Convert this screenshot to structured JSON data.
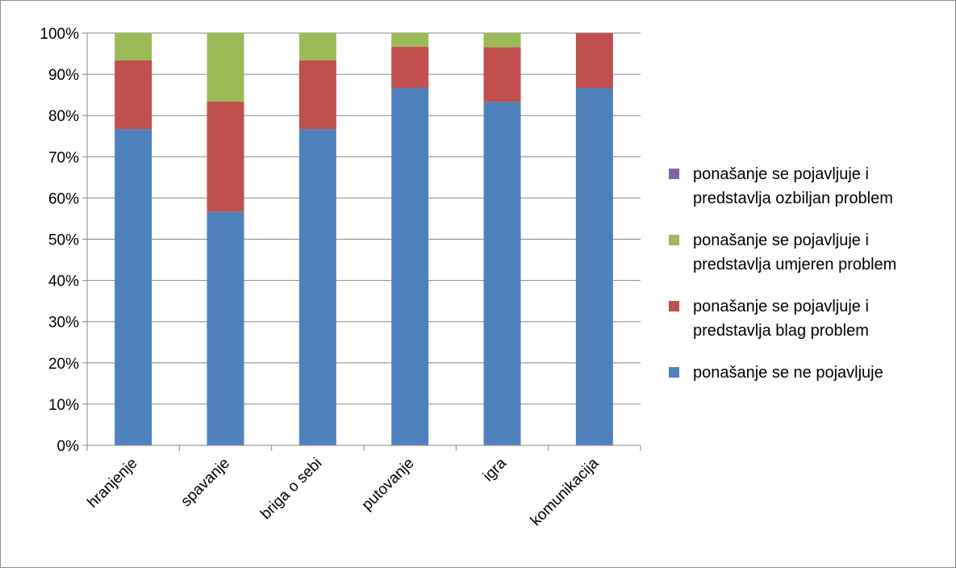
{
  "chart_data": {
    "type": "bar",
    "stacked": "percent",
    "categories": [
      "hranjenje",
      "spavanje",
      "briga o sebi",
      "putovanje",
      "igra",
      "komunikacija"
    ],
    "series": [
      {
        "name": "ponašanje se ne pojavljuje",
        "color": "#4F81BD",
        "values": [
          76.7,
          56.7,
          76.7,
          86.7,
          83.3,
          86.7
        ]
      },
      {
        "name": "ponašanje se pojavljuje i predstavlja blag problem",
        "color": "#C0504D",
        "values": [
          16.7,
          26.7,
          16.7,
          10.0,
          13.3,
          13.3
        ]
      },
      {
        "name": "ponašanje se pojavljuje i predstavlja umjeren problem",
        "color": "#9BBB59",
        "values": [
          6.6,
          16.6,
          6.6,
          3.3,
          3.4,
          0.0
        ]
      },
      {
        "name": "ponašanje se pojavljuje i predstavlja ozbiljan problem",
        "color": "#8064A2",
        "values": [
          0,
          0,
          0,
          0,
          0,
          0
        ]
      }
    ],
    "y_ticks": [
      "0%",
      "10%",
      "20%",
      "30%",
      "40%",
      "50%",
      "60%",
      "70%",
      "80%",
      "90%",
      "100%"
    ],
    "ylim": [
      0,
      100
    ],
    "grid": true,
    "legend_position": "right",
    "legend": [
      {
        "lines": [
          "ponašanje se pojavljuje i",
          "predstavlja ozbiljan problem"
        ],
        "color": "#8064A2"
      },
      {
        "lines": [
          "ponašanje se pojavljuje i",
          "predstavlja umjeren problem"
        ],
        "color": "#9BBB59"
      },
      {
        "lines": [
          "ponašanje se pojavljuje i",
          "predstavlja blag problem"
        ],
        "color": "#C0504D"
      },
      {
        "lines": [
          "ponašanje se ne pojavljuje"
        ],
        "color": "#4F81BD"
      }
    ]
  }
}
